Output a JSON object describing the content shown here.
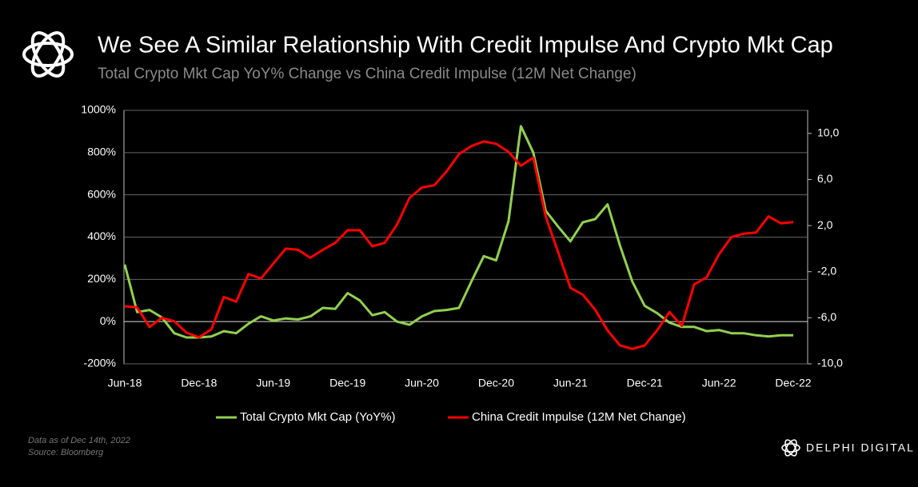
{
  "chart_data": {
    "type": "line",
    "title": "We See A Similar Relationship With Credit Impulse And Crypto Mkt Cap",
    "subtitle": "Total Crypto Mkt Cap YoY% Change vs China Credit Impulse (12M Net Change)",
    "categories": [
      "Jun-18",
      null,
      null,
      null,
      null,
      null,
      "Dec-18",
      null,
      null,
      null,
      null,
      null,
      "Jun-19",
      null,
      null,
      null,
      null,
      null,
      "Dec-19",
      null,
      null,
      null,
      null,
      null,
      "Jun-20",
      null,
      null,
      null,
      null,
      null,
      "Dec-20",
      null,
      null,
      null,
      null,
      null,
      "Jun-21",
      null,
      null,
      null,
      null,
      null,
      "Dec-21",
      null,
      null,
      null,
      null,
      null,
      "Jun-22",
      null,
      null,
      null,
      null,
      null,
      "Dec-22"
    ],
    "series": [
      {
        "name": "Total Crypto Mkt Cap (YoY%)",
        "color": "#92d050",
        "axis": "y",
        "values": [
          270,
          45,
          55,
          20,
          -55,
          -75,
          -75,
          -70,
          -45,
          -55,
          -10,
          25,
          5,
          15,
          10,
          25,
          65,
          60,
          135,
          100,
          30,
          45,
          0,
          -15,
          25,
          50,
          55,
          65,
          190,
          310,
          290,
          475,
          925,
          800,
          525,
          450,
          380,
          470,
          485,
          555,
          360,
          190,
          75,
          40,
          -5,
          -25,
          -25,
          -45,
          -40,
          -55,
          -55,
          -65,
          -70,
          -65,
          -65
        ]
      },
      {
        "name": "China Credit Impulse (12M Net Change)",
        "color": "#ff0000",
        "axis": "y2",
        "values": [
          -5.0,
          -5.1,
          -6.8,
          -6.0,
          -6.3,
          -7.3,
          -7.7,
          -7.0,
          -4.2,
          -4.6,
          -2.2,
          -2.6,
          -1.3,
          0.0,
          -0.1,
          -0.8,
          -0.1,
          0.5,
          1.6,
          1.6,
          0.2,
          0.5,
          2.1,
          4.4,
          5.3,
          5.5,
          6.7,
          8.2,
          8.9,
          9.3,
          9.1,
          8.4,
          7.2,
          7.9,
          2.8,
          -0.3,
          -3.4,
          -4.0,
          -5.3,
          -7.1,
          -8.4,
          -8.7,
          -8.4,
          -7.1,
          -5.5,
          -6.7,
          -3.1,
          -2.5,
          -0.5,
          1.0,
          1.3,
          1.4,
          2.8,
          2.2,
          2.3
        ]
      }
    ],
    "ylim": [
      -200,
      1000
    ],
    "yticks": [
      {
        "value": -200,
        "label": "-200%"
      },
      {
        "value": 0,
        "label": "0%"
      },
      {
        "value": 200,
        "label": "200%"
      },
      {
        "value": 400,
        "label": "400%"
      },
      {
        "value": 600,
        "label": "600%"
      },
      {
        "value": 800,
        "label": "800%"
      },
      {
        "value": 1000,
        "label": "1000%"
      }
    ],
    "y2lim": [
      -10,
      12
    ],
    "y2ticks": [
      {
        "value": -10,
        "label": "-10,0"
      },
      {
        "value": -6,
        "label": "-6,0"
      },
      {
        "value": -2,
        "label": "-2,0"
      },
      {
        "value": 2,
        "label": "2,0"
      },
      {
        "value": 6,
        "label": "6,0"
      },
      {
        "value": 10,
        "label": "10,0"
      }
    ],
    "grid": true,
    "legend": "bottom"
  },
  "footnotes": [
    "Data as of Dec 14th, 2022",
    "Source: Bloomberg"
  ],
  "brand": "DELPHI DIGITAL"
}
